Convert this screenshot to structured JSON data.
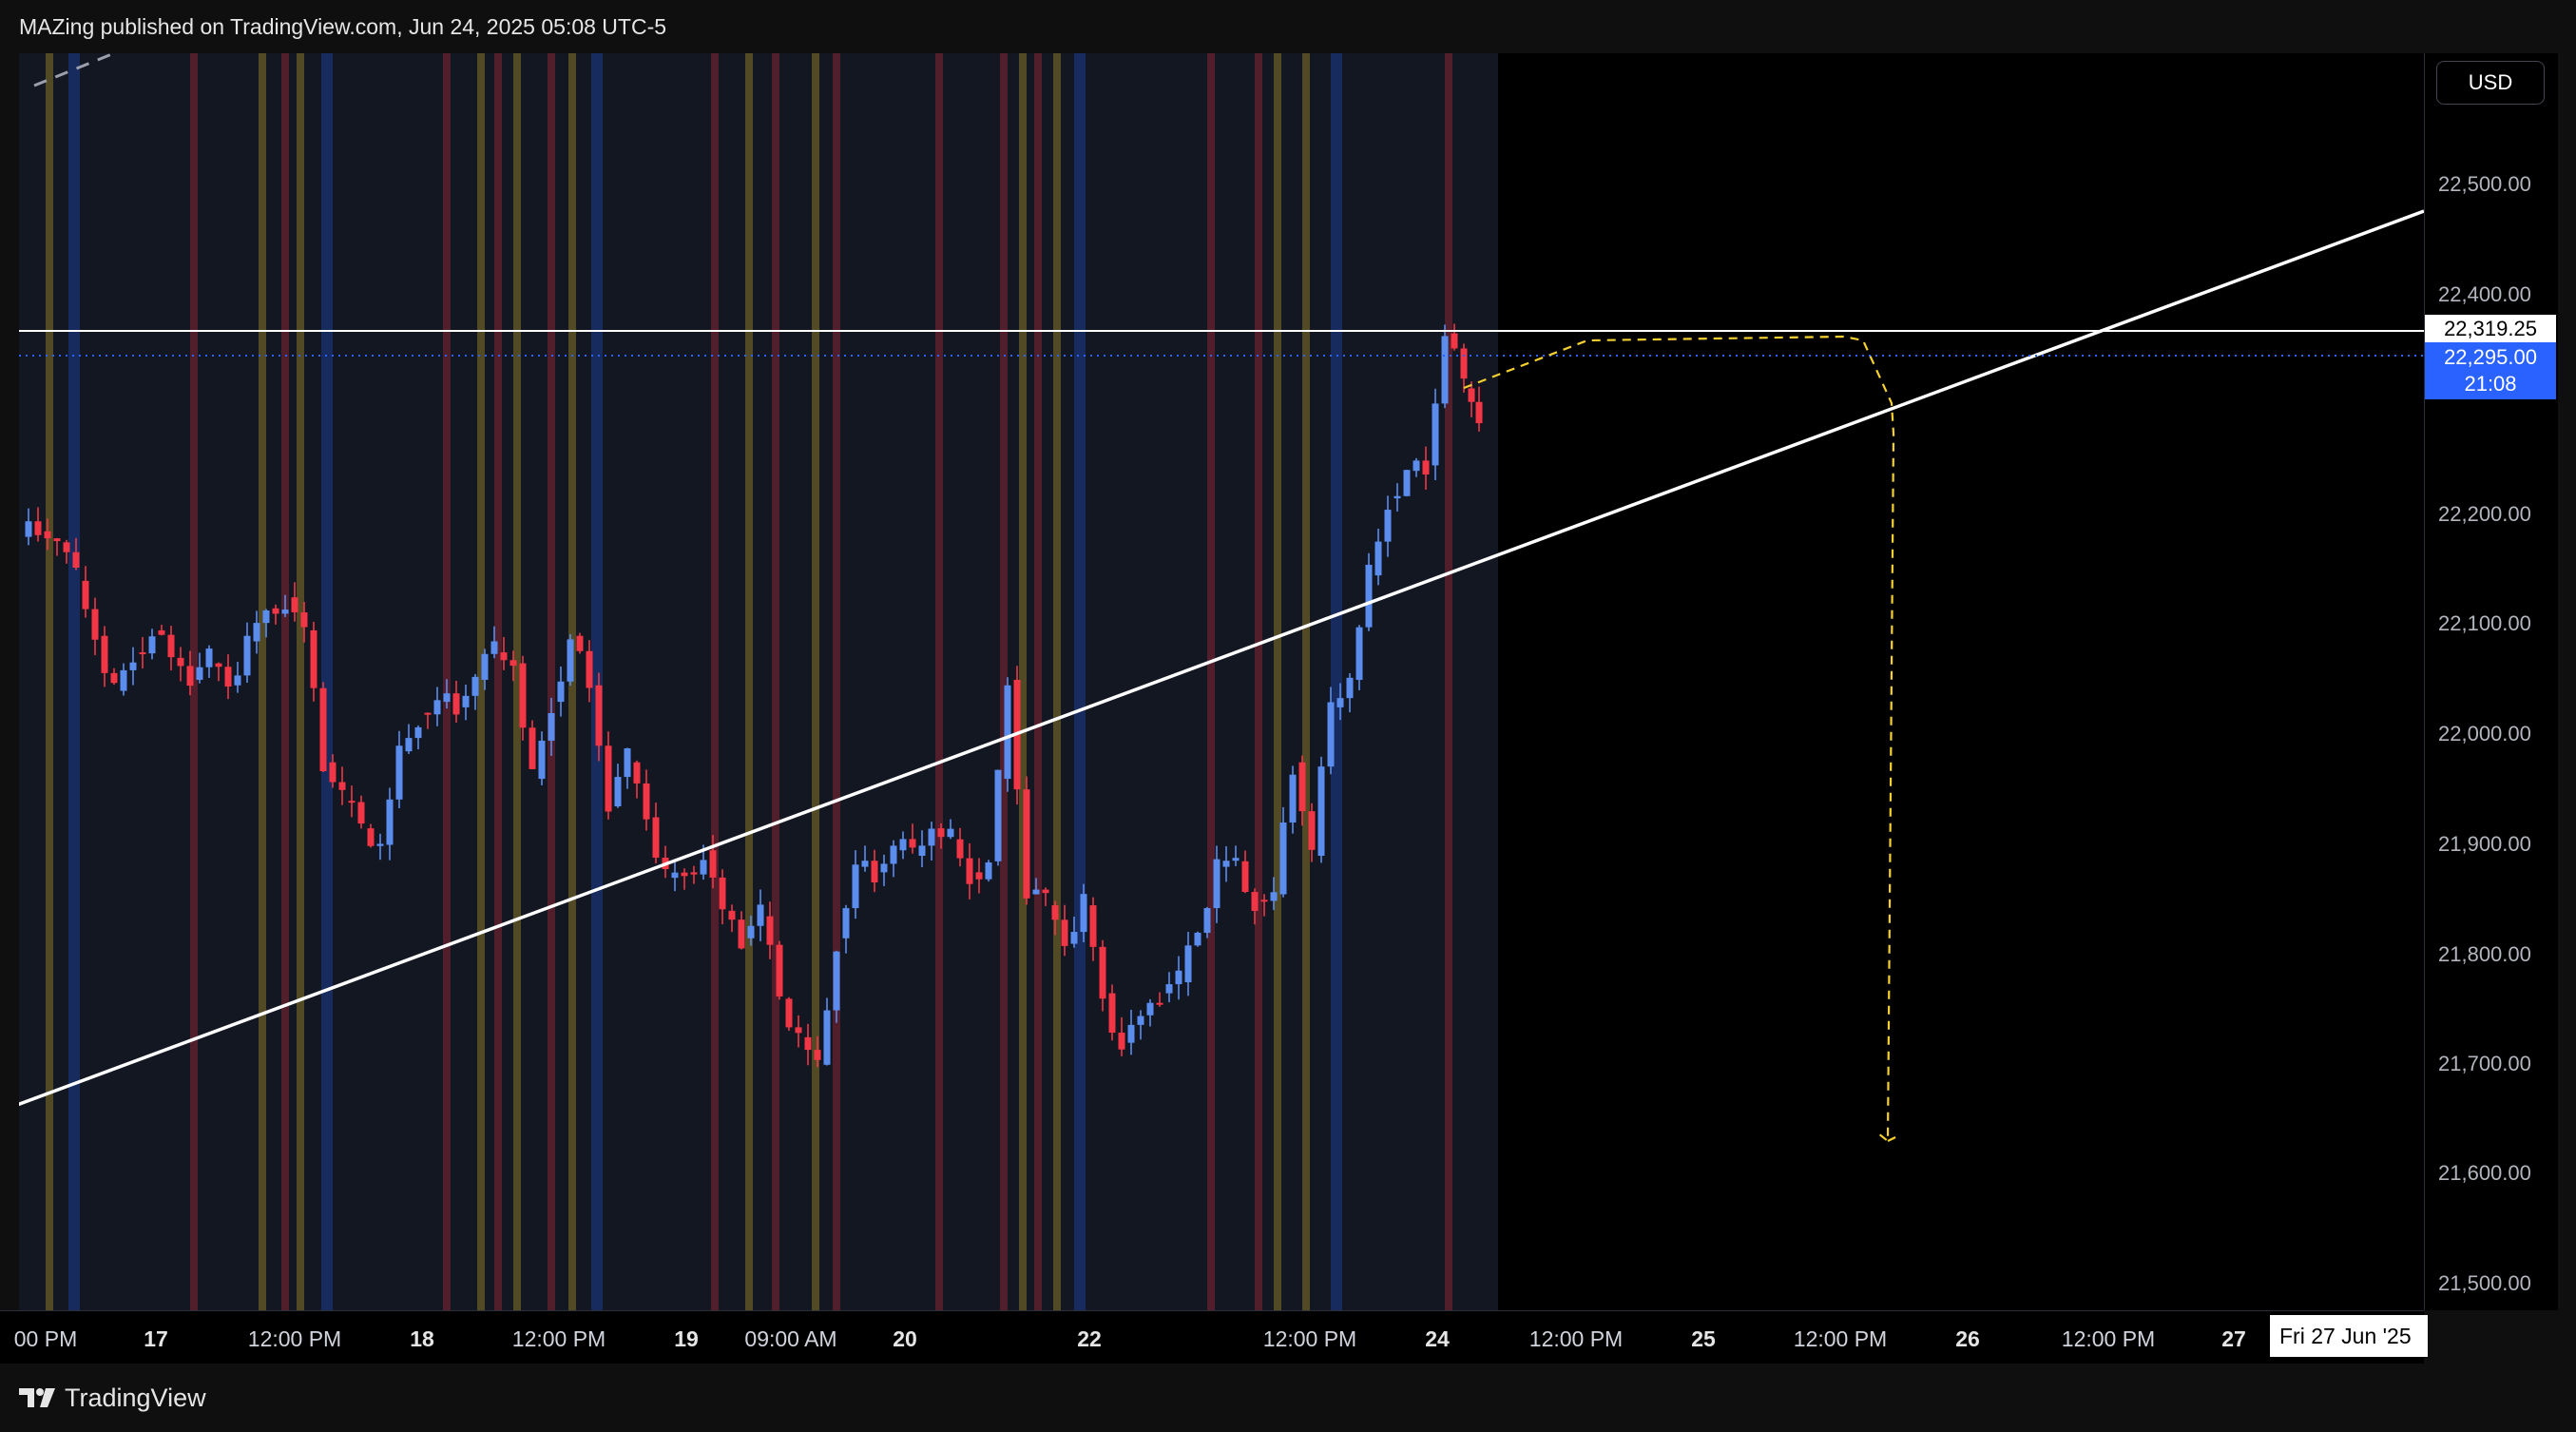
{
  "header": {
    "published_text": "MAZing published on TradingView.com, Jun 24, 2025 05:08 UTC-5"
  },
  "price_axis": {
    "currency": "USD",
    "ticks": [
      "22,500.00",
      "22,400.00",
      "22,200.00",
      "22,100.00",
      "22,000.00",
      "21,900.00",
      "21,800.00",
      "21,700.00",
      "21,600.00",
      "21,500.00"
    ],
    "horizontal_line_label": "22,319.25",
    "last_price": "22,295.00",
    "countdown": "21:08"
  },
  "time_axis": {
    "ticks": [
      "00 PM",
      "17",
      "12:00 PM",
      "18",
      "12:00 PM",
      "19",
      "09:00 AM",
      "20",
      "22",
      "12:00 PM",
      "24",
      "12:00 PM",
      "25",
      "12:00 PM",
      "26",
      "12:00 PM",
      "27"
    ],
    "cursor_label": "Fri 27 Jun '25"
  },
  "footer": {
    "brand": "TradingView"
  },
  "colors": {
    "up_candle": "#5b8def",
    "down_candle": "#f23645",
    "session_fill": "#131722",
    "trendline": "#ffffff",
    "projection": "#f5d130",
    "price_label_blue": "#2962ff"
  }
}
